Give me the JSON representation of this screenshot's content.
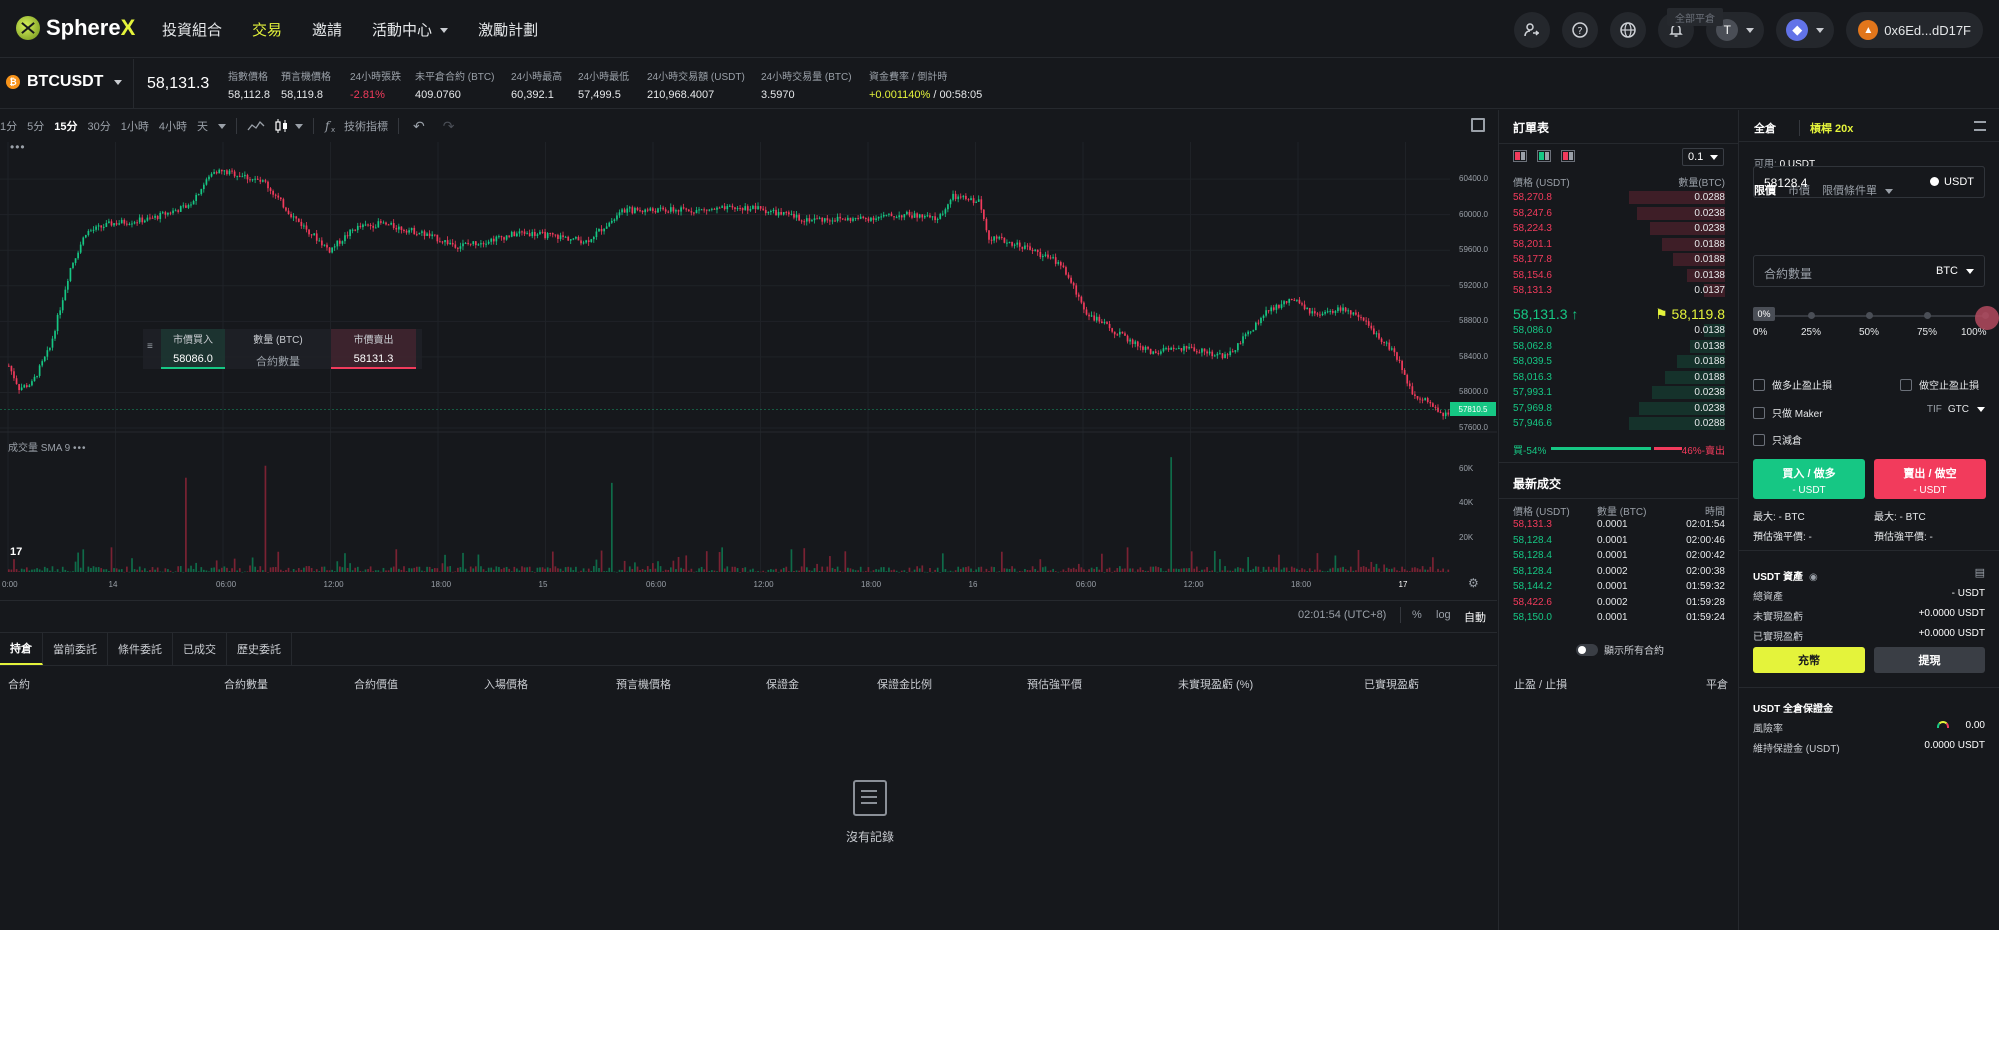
{
  "nav": {
    "logo_main": "Sphere",
    "logo_x": "X",
    "links": [
      "投資組合",
      "交易",
      "邀請",
      "活動中心",
      "激勵計劃"
    ],
    "active_index": 1,
    "network_letter": "T",
    "wallet": "0x6Ed...dD17F"
  },
  "ticker": {
    "pair": "BTCUSDT",
    "last": "58,131.3",
    "stats": [
      {
        "label": "指數價格",
        "value": "58,112.8",
        "tone": ""
      },
      {
        "label": "預言機價格",
        "value": "58,119.8",
        "tone": ""
      },
      {
        "label": "24小時張跌",
        "value": "-2.81%",
        "tone": "red"
      },
      {
        "label": "未平倉合約 (BTC)",
        "value": "409.0760",
        "tone": ""
      },
      {
        "label": "24小時最高",
        "value": "60,392.1",
        "tone": ""
      },
      {
        "label": "24小時最低",
        "value": "57,499.5",
        "tone": ""
      },
      {
        "label": "24小時交易額 (USDT)",
        "value": "210,968.4007",
        "tone": ""
      },
      {
        "label": "24小時交易量 (BTC)",
        "value": "3.5970",
        "tone": ""
      },
      {
        "label": "資金費率 / 倒計時",
        "value": "+0.001140%",
        "value2": " / 00:58:05",
        "tone": "yellow"
      }
    ]
  },
  "chart_toolbar": {
    "timeframes": [
      "1分",
      "5分",
      "15分",
      "30分",
      "1小時",
      "4小時",
      "天"
    ],
    "active_tf": 2,
    "indicators": "技術指標"
  },
  "chart_data": {
    "type": "candlestick",
    "price_axis": [
      "60400.0",
      "60000.0",
      "59600.0",
      "59200.0",
      "58800.0",
      "58400.0",
      "58000.0",
      "57600.0"
    ],
    "price_range": [
      57420,
      60750
    ],
    "current_price_label": "57810.5",
    "volume_label": "成交量 SMA 9",
    "volume_axis": [
      "60K",
      "40K",
      "20K"
    ],
    "time_axis": [
      "0:00",
      "14",
      "06:00",
      "12:00",
      "18:00",
      "15",
      "06:00",
      "12:00",
      "18:00",
      "16",
      "06:00",
      "12:00",
      "18:00",
      "17"
    ],
    "anchors": [
      [
        0,
        58300
      ],
      [
        4,
        58050
      ],
      [
        9,
        58100
      ],
      [
        16,
        58500
      ],
      [
        24,
        59400
      ],
      [
        30,
        59800
      ],
      [
        40,
        59900
      ],
      [
        55,
        59950
      ],
      [
        70,
        60100
      ],
      [
        80,
        60500
      ],
      [
        90,
        60450
      ],
      [
        100,
        60350
      ],
      [
        110,
        60000
      ],
      [
        125,
        59600
      ],
      [
        135,
        59850
      ],
      [
        145,
        59900
      ],
      [
        160,
        59800
      ],
      [
        175,
        59650
      ],
      [
        185,
        59700
      ],
      [
        200,
        59800
      ],
      [
        215,
        59750
      ],
      [
        225,
        59700
      ],
      [
        240,
        60050
      ],
      [
        255,
        60050
      ],
      [
        270,
        60050
      ],
      [
        290,
        60080
      ],
      [
        310,
        59950
      ],
      [
        330,
        59950
      ],
      [
        350,
        60000
      ],
      [
        362,
        59950
      ],
      [
        368,
        60200
      ],
      [
        378,
        60150
      ],
      [
        382,
        59750
      ],
      [
        395,
        59650
      ],
      [
        410,
        59450
      ],
      [
        420,
        58900
      ],
      [
        430,
        58700
      ],
      [
        445,
        58450
      ],
      [
        460,
        58500
      ],
      [
        475,
        58400
      ],
      [
        490,
        58900
      ],
      [
        500,
        59050
      ],
      [
        510,
        58850
      ],
      [
        520,
        58950
      ],
      [
        530,
        58750
      ],
      [
        540,
        58450
      ],
      [
        547,
        58000
      ],
      [
        555,
        57850
      ],
      [
        562,
        57700
      ]
    ],
    "volume_spikes": [
      [
        69,
        55000
      ],
      [
        100,
        62000
      ],
      [
        235,
        52000
      ],
      [
        453,
        67000
      ]
    ]
  },
  "quick_order": {
    "buy_label": "市價買入",
    "buy_value": "58086.0",
    "qty_label": "數量 (BTC)",
    "qty_placeholder": "合約數量",
    "sell_label": "市價賣出",
    "sell_value": "58131.3"
  },
  "timebar": {
    "time": "02:01:54 (UTC+8)",
    "pct": "%",
    "log": "log",
    "auto": "自動"
  },
  "positions": {
    "tabs": [
      "持倉",
      "當前委託",
      "條件委託",
      "已成交",
      "歷史委託"
    ],
    "active_tab": 0,
    "show_all": "顯示所有合約",
    "close_all": "全部平倉",
    "headers": [
      "合約",
      "合約數量",
      "合約價值",
      "入場價格",
      "預言機價格",
      "保證金",
      "保證金比例",
      "預估強平價",
      "未實現盈虧 (%)",
      "已實現盈虧",
      "止盈 / 止損",
      "平倉"
    ],
    "empty": "沒有記錄"
  },
  "orderbook": {
    "title": "訂單表",
    "step": "0.1",
    "head_price": "價格 (USDT)",
    "head_qty": "數量(BTC)",
    "asks": [
      {
        "p": "58,270.8",
        "q": "0.0288",
        "d": 1.0
      },
      {
        "p": "58,247.6",
        "q": "0.0238",
        "d": 0.92
      },
      {
        "p": "58,224.3",
        "q": "0.0238",
        "d": 0.78
      },
      {
        "p": "58,201.1",
        "q": "0.0188",
        "d": 0.66
      },
      {
        "p": "58,177.8",
        "q": "0.0188",
        "d": 0.54
      },
      {
        "p": "58,154.6",
        "q": "0.0138",
        "d": 0.4
      },
      {
        "p": "58,131.3",
        "q": "0.0137",
        "d": 0.22
      }
    ],
    "mid_price": "58,131.3 ↑",
    "mark_price": "⚑ 58,119.8",
    "bids": [
      {
        "p": "58,086.0",
        "q": "0.0138",
        "d": 0.22
      },
      {
        "p": "58,062.8",
        "q": "0.0138",
        "d": 0.36
      },
      {
        "p": "58,039.5",
        "q": "0.0188",
        "d": 0.5
      },
      {
        "p": "58,016.3",
        "q": "0.0188",
        "d": 0.62
      },
      {
        "p": "57,993.1",
        "q": "0.0238",
        "d": 0.76
      },
      {
        "p": "57,969.8",
        "q": "0.0238",
        "d": 0.9
      },
      {
        "p": "57,946.6",
        "q": "0.0288",
        "d": 1.0
      }
    ],
    "buy_ratio": "買-54%",
    "sell_ratio": "46%-賣出"
  },
  "trades": {
    "title": "最新成交",
    "head_price": "價格 (USDT)",
    "head_amt": "數量 (BTC)",
    "head_time": "時間",
    "rows": [
      {
        "p": "58,131.3",
        "a": "0.0001",
        "t": "02:01:54",
        "side": "sell"
      },
      {
        "p": "58,128.4",
        "a": "0.0001",
        "t": "02:00:46",
        "side": "buy"
      },
      {
        "p": "58,128.4",
        "a": "0.0001",
        "t": "02:00:42",
        "side": "buy"
      },
      {
        "p": "58,128.4",
        "a": "0.0002",
        "t": "02:00:38",
        "side": "buy"
      },
      {
        "p": "58,144.2",
        "a": "0.0001",
        "t": "01:59:32",
        "side": "buy"
      },
      {
        "p": "58,422.6",
        "a": "0.0002",
        "t": "01:59:28",
        "side": "sell"
      },
      {
        "p": "58,150.0",
        "a": "0.0001",
        "t": "01:59:24",
        "side": "buy"
      }
    ]
  },
  "panel": {
    "cross": "全倉",
    "leverage": "槓桿 20x",
    "avail_label": "可用: ",
    "avail_value": "0 USDT",
    "order_tabs": [
      "限價",
      "市價",
      "限價條件單"
    ],
    "price_value": "58128.4",
    "price_unit": "USDT",
    "qty_placeholder": "合約數量",
    "qty_unit": "BTC",
    "slider_tag": "0%",
    "slider_labels": [
      "0%",
      "25%",
      "50%",
      "75%",
      "100%"
    ],
    "checks": [
      "做多止盈止損",
      "做空止盈止損",
      "只做 Maker",
      "只減倉"
    ],
    "tif_label": "TIF",
    "tif_value": "GTC",
    "buy_main": "買入 / 做多",
    "buy_sub": "- USDT",
    "sell_main": "賣出 / 做空",
    "sell_sub": "- USDT",
    "max_buy": "最大: - BTC",
    "max_sell": "最大: - BTC",
    "liq_buy": "預估強平價: -",
    "liq_sell": "預估強平價: -",
    "assets_title": "USDT 資產",
    "assets": [
      {
        "k": "總資產",
        "v": "- USDT"
      },
      {
        "k": "未實現盈虧",
        "v": "+0.0000 USDT"
      },
      {
        "k": "已實現盈虧",
        "v": "+0.0000 USDT"
      }
    ],
    "deposit": "充幣",
    "withdraw": "提現",
    "margin_title": "USDT 全倉保證金",
    "margin": [
      {
        "k": "風險率",
        "v": "0.00"
      },
      {
        "k": "維持保證金 (USDT)",
        "v": "0.0000 USDT"
      }
    ]
  }
}
